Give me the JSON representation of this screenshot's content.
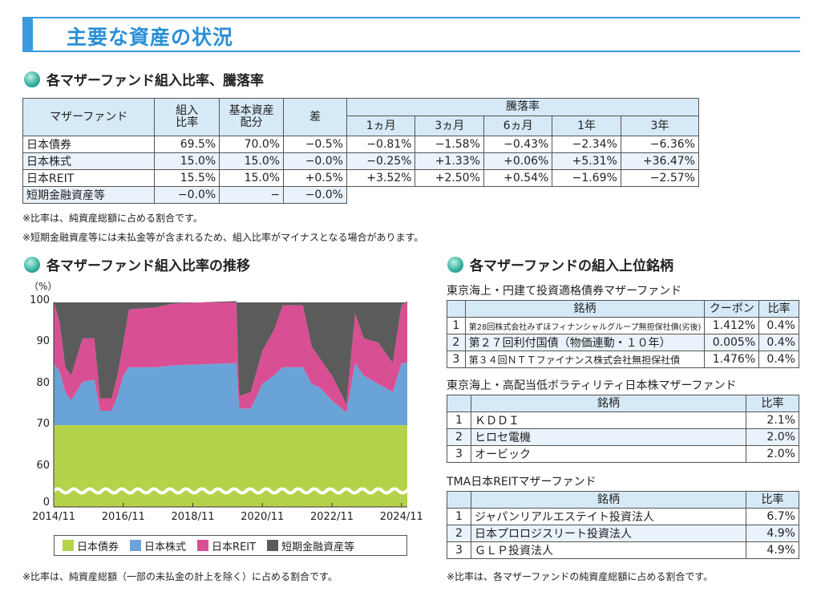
{
  "header": {
    "title": "主要な資産の状況"
  },
  "section1": {
    "title": "各マザーファンド組入比率、騰落率",
    "headers": {
      "fund": "マザーファンド",
      "weight": "組入\n比率",
      "base": "基本資産\n配分",
      "diff": "差",
      "perf": "騰落率",
      "periods": [
        "1ヵ月",
        "3ヵ月",
        "6ヵ月",
        "1年",
        "3年"
      ]
    },
    "rows": [
      {
        "name": "日本債券",
        "weight": "69.5%",
        "base": "70.0%",
        "diff": "−0.5%",
        "perf": [
          "−0.81%",
          "−1.58%",
          "−0.43%",
          "−2.34%",
          "−6.36%"
        ]
      },
      {
        "name": "日本株式",
        "weight": "15.0%",
        "base": "15.0%",
        "diff": "−0.0%",
        "perf": [
          "−0.25%",
          "+1.33%",
          "+0.06%",
          "+5.31%",
          "+36.47%"
        ]
      },
      {
        "name": "日本REIT",
        "weight": "15.5%",
        "base": "15.0%",
        "diff": "+0.5%",
        "perf": [
          "+3.52%",
          "+2.50%",
          "+0.54%",
          "−1.69%",
          "−2.57%"
        ]
      },
      {
        "name": "短期金融資産等",
        "weight": "−0.0%",
        "base": "−",
        "diff": "−0.0%"
      }
    ],
    "notes": [
      "※比率は、純資産総額に占める割合です。",
      "※短期金融資産等には未払金等が含まれるため、組入比率がマイナスとなる場合があります。"
    ]
  },
  "section2": {
    "title": "各マザーファンド組入比率の推移",
    "note": "※比率は、純資産総額（一部の未払金の計上を除く）に占める割合です。"
  },
  "chart_data": {
    "type": "area",
    "stacked": true,
    "ylabel": "（%）",
    "yticks": [
      0,
      60,
      70,
      80,
      90,
      100
    ],
    "ylim": [
      0,
      100
    ],
    "axis_break": [
      0,
      60
    ],
    "xticks": [
      "2014/11",
      "2016/11",
      "2018/11",
      "2020/11",
      "2022/11",
      "2024/11"
    ],
    "x": [
      "2014/11",
      "2015/01",
      "2015/03",
      "2015/05",
      "2015/09",
      "2016/01",
      "2016/03",
      "2016/07",
      "2016/09",
      "2016/11",
      "2017/01",
      "2017/10",
      "2018/05",
      "2020/02",
      "2020/03",
      "2020/07",
      "2020/11",
      "2021/03",
      "2021/06",
      "2022/01",
      "2022/04",
      "2022/07",
      "2022/11",
      "2023/04",
      "2023/07",
      "2023/10",
      "2024/03",
      "2024/08",
      "2024/11",
      "2025/01"
    ],
    "series": [
      {
        "name": "日本債券",
        "color": "#b5d34a",
        "values": [
          70,
          70,
          70,
          70,
          70,
          70,
          70,
          70,
          70,
          70,
          70,
          70,
          70,
          70,
          70,
          70,
          70,
          70,
          70,
          70,
          70,
          70,
          70,
          70,
          70,
          70,
          70,
          70,
          70,
          70
        ]
      },
      {
        "name": "日本株式",
        "color": "#6aa3d8",
        "values": [
          15,
          13,
          8,
          6,
          10.5,
          11,
          3.5,
          3.5,
          7,
          12,
          14,
          14,
          14.5,
          15,
          4,
          4,
          10,
          12,
          14,
          14,
          10,
          9,
          6,
          3,
          15,
          12,
          10,
          8,
          15,
          15
        ]
      },
      {
        "name": "日本REIT",
        "color": "#d94f93",
        "values": [
          15,
          12,
          6,
          6,
          10.5,
          10,
          3,
          3,
          5,
          8,
          14,
          14.5,
          15,
          15,
          3,
          4,
          8,
          11,
          15,
          15,
          9,
          7,
          6,
          2,
          12,
          9,
          10,
          7,
          14,
          15
        ]
      },
      {
        "name": "短期金融資産等",
        "color": "#5b5b5b",
        "values": [
          0,
          5,
          16,
          18,
          9,
          9,
          23.5,
          23.5,
          18,
          10,
          2,
          1.5,
          0.5,
          0,
          23,
          22,
          12,
          7,
          1,
          1,
          11,
          14,
          18,
          25,
          3,
          9,
          10,
          15,
          1,
          0
        ]
      }
    ],
    "legend": "bottom"
  },
  "section3": {
    "title": "各マザーファンドの組入上位銘柄",
    "funds": [
      {
        "name": "東京海上・円建て投資適格債券マザーファンド",
        "headers": [
          "銘柄",
          "クーポン",
          "比率"
        ],
        "rows": [
          [
            "1",
            "第28回株式会社みずほフィナンシャルグループ無担保社債(劣後)",
            "1.412%",
            "0.4%"
          ],
          [
            "2",
            "第２７回利付国債（物価連動・１０年）",
            "0.005%",
            "0.4%"
          ],
          [
            "3",
            "第３４回ＮＴＴファイナンス株式会社無担保社債",
            "1.476%",
            "0.4%"
          ]
        ]
      },
      {
        "name": "東京海上・高配当低ボラティリティ日本株マザーファンド",
        "headers": [
          "銘柄",
          "比率"
        ],
        "rows": [
          [
            "1",
            "ＫＤＤＩ",
            "2.1%"
          ],
          [
            "2",
            "ヒロセ電機",
            "2.0%"
          ],
          [
            "3",
            "オービック",
            "2.0%"
          ]
        ]
      },
      {
        "name": "TMA日本REITマザーファンド",
        "headers": [
          "銘柄",
          "比率"
        ],
        "rows": [
          [
            "1",
            "ジャパンリアルエステイト投資法人",
            "6.7%"
          ],
          [
            "2",
            "日本プロロジスリート投資法人",
            "4.9%"
          ],
          [
            "3",
            "ＧＬＰ投資法人",
            "4.9%"
          ]
        ]
      }
    ],
    "note": "※比率は、各マザーファンドの純資産総額に占める割合です。"
  }
}
